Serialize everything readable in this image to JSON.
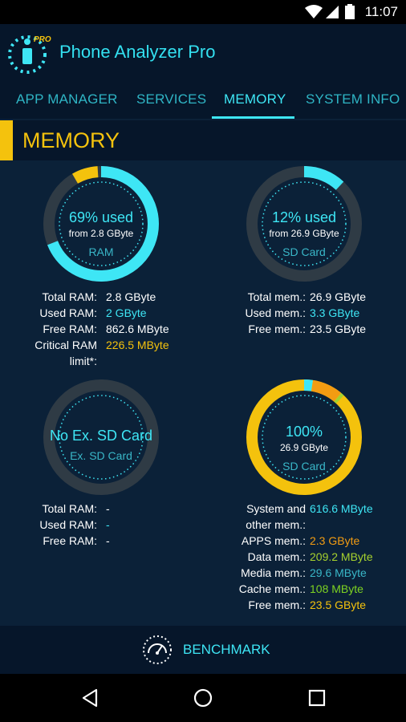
{
  "status_bar": {
    "time": "11:07",
    "icons": [
      "wifi-icon",
      "signal-icon",
      "battery-icon"
    ]
  },
  "app": {
    "title": "Phone Analyzer Pro",
    "logo_badge": "PRO"
  },
  "tabs": [
    {
      "label": "APP MANAGER"
    },
    {
      "label": "SERVICES"
    },
    {
      "label": "MEMORY",
      "active": true
    },
    {
      "label": "SYSTEM INFO"
    }
  ],
  "section": {
    "title": "MEMORY"
  },
  "ram": {
    "big": "69% used",
    "small": "from 2.8 GByte",
    "sub": "RAM",
    "used_fraction": 0.69,
    "rows": [
      {
        "key": "Total RAM:",
        "value": "2.8 GByte",
        "color": "#ffffff"
      },
      {
        "key": "Used RAM:",
        "value": "2 GByte",
        "color": "#3ee6f5"
      },
      {
        "key": "Free RAM:",
        "value": "862.6 MByte",
        "color": "#ffffff"
      },
      {
        "key": "Critical RAM",
        "key2": "limit*:",
        "value": "226.5 MByte",
        "color": "#f4c20d"
      }
    ]
  },
  "sd_card": {
    "big": "12% used",
    "small": "from 26.9 GByte",
    "sub": "SD Card",
    "used_fraction": 0.12,
    "rows": [
      {
        "key": "Total mem.:",
        "value": "26.9 GByte",
        "color": "#ffffff"
      },
      {
        "key": "Used mem.:",
        "value": "3.3 GByte",
        "color": "#3ee6f5"
      },
      {
        "key": "Free mem.:",
        "value": "23.5 GByte",
        "color": "#ffffff"
      }
    ]
  },
  "ext_sd": {
    "big": "No Ex. SD Card",
    "sub": "Ex. SD Card",
    "rows": [
      {
        "key": "Total RAM:",
        "value": "-",
        "color": "#ffffff"
      },
      {
        "key": "Used RAM:",
        "value": "-",
        "color": "#3ee6f5"
      },
      {
        "key": "Free RAM:",
        "value": "-",
        "color": "#ffffff"
      }
    ]
  },
  "sd_breakdown": {
    "big": "100%",
    "small": "26.9 GByte",
    "sub": "SD Card",
    "rows": [
      {
        "key": "System and",
        "key2": "other mem.:",
        "value": "616.6 MByte",
        "color": "#3ee6f5"
      },
      {
        "key": "APPS mem.:",
        "value": "2.3 GByte",
        "color": "#f39c12"
      },
      {
        "key": "Data mem.:",
        "value": "209.2 MByte",
        "color": "#a6d12e"
      },
      {
        "key": "Media mem.:",
        "value": "29.6 MByte",
        "color": "#39b7c8"
      },
      {
        "key": "Cache mem.:",
        "value": "108 MByte",
        "color": "#7ed321"
      },
      {
        "key": "Free mem.:",
        "value": "23.5 GByte",
        "color": "#f4c20d"
      }
    ]
  },
  "colors": {
    "accent": "#3ee6f5",
    "yellow": "#f4c20d",
    "ring_bg": "#2f3b45"
  },
  "footer": {
    "benchmark_label": "BENCHMARK"
  },
  "nav": {
    "icons": [
      "back-icon",
      "home-icon",
      "recents-icon"
    ]
  }
}
